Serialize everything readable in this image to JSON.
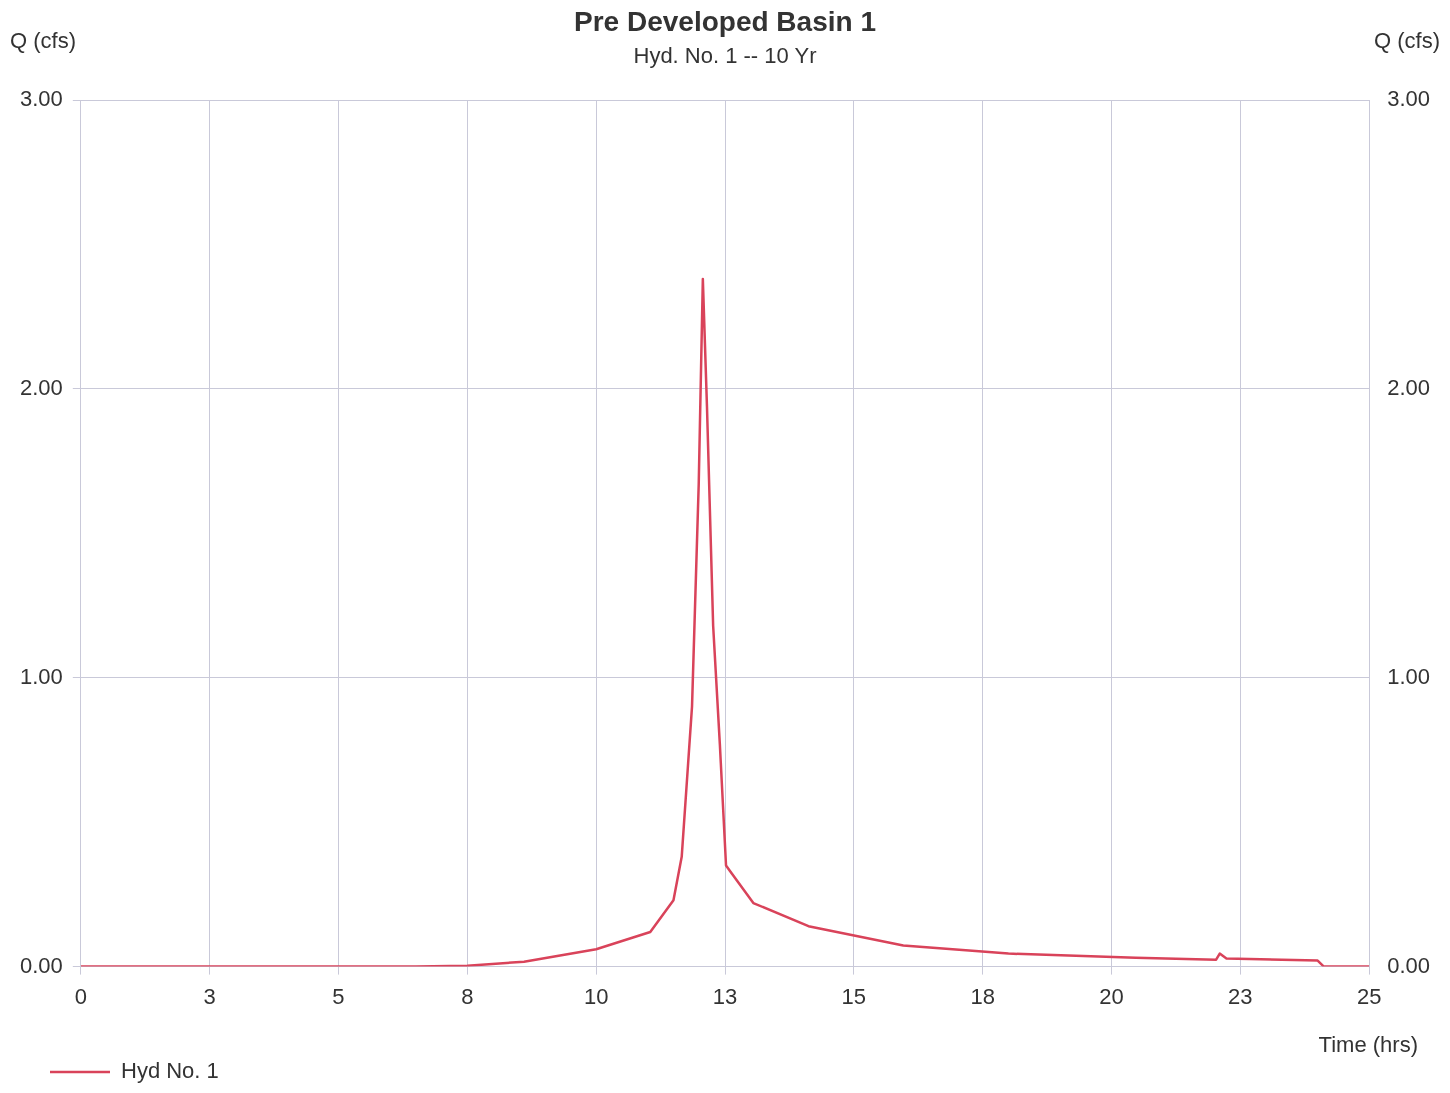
{
  "chart_data": {
    "type": "line",
    "title": "Pre Developed Basin 1",
    "subtitle": "Hyd. No. 1 -- 10 Yr",
    "xlabel": "Time (hrs)",
    "ylabel": "Q (cfs)",
    "y2label": "Q (cfs)",
    "x": [
      0,
      6.5,
      7.5,
      8.6,
      10,
      11.05,
      11.5,
      11.66,
      11.86,
      11.99,
      12.07,
      12.15,
      12.27,
      12.4,
      12.52,
      12.6,
      13.05,
      14.12,
      15.96,
      18.0,
      20.47,
      22.03,
      22.1,
      22.23,
      24.0,
      24.12,
      25
    ],
    "series": [
      {
        "name": "Hyd No. 1",
        "color": "#d9435a",
        "values": [
          0,
          0,
          0.003,
          0.017,
          0.06,
          0.12,
          0.23,
          0.38,
          0.9,
          1.67,
          2.38,
          1.94,
          1.18,
          0.77,
          0.35,
          0.33,
          0.22,
          0.14,
          0.073,
          0.045,
          0.031,
          0.024,
          0.045,
          0.028,
          0.021,
          0,
          0
        ]
      }
    ],
    "xlim": [
      0,
      25
    ],
    "xticks": [
      0,
      {
        "value": 2.5,
        "label": "3"
      },
      5,
      {
        "value": 7.5,
        "label": "8"
      },
      10,
      {
        "value": 12.5,
        "label": "13"
      },
      15,
      {
        "value": 17.5,
        "label": "18"
      },
      20,
      {
        "value": 22.5,
        "label": "23"
      },
      25
    ],
    "ylim": [
      0,
      3
    ],
    "yticks": [
      {
        "value": 0,
        "label": "0.00"
      },
      {
        "value": 1,
        "label": "1.00"
      },
      {
        "value": 2,
        "label": "2.00"
      },
      {
        "value": 3,
        "label": "3.00"
      }
    ],
    "y2lim": [
      0,
      3
    ],
    "y2ticks": [
      {
        "value": 0,
        "label": "0.00"
      },
      {
        "value": 1,
        "label": "1.00"
      },
      {
        "value": 2,
        "label": "2.00"
      },
      {
        "value": 3,
        "label": "3.00"
      }
    ],
    "grid": true,
    "legend": "bottom left",
    "marker": "none",
    "line_style": "solid"
  }
}
